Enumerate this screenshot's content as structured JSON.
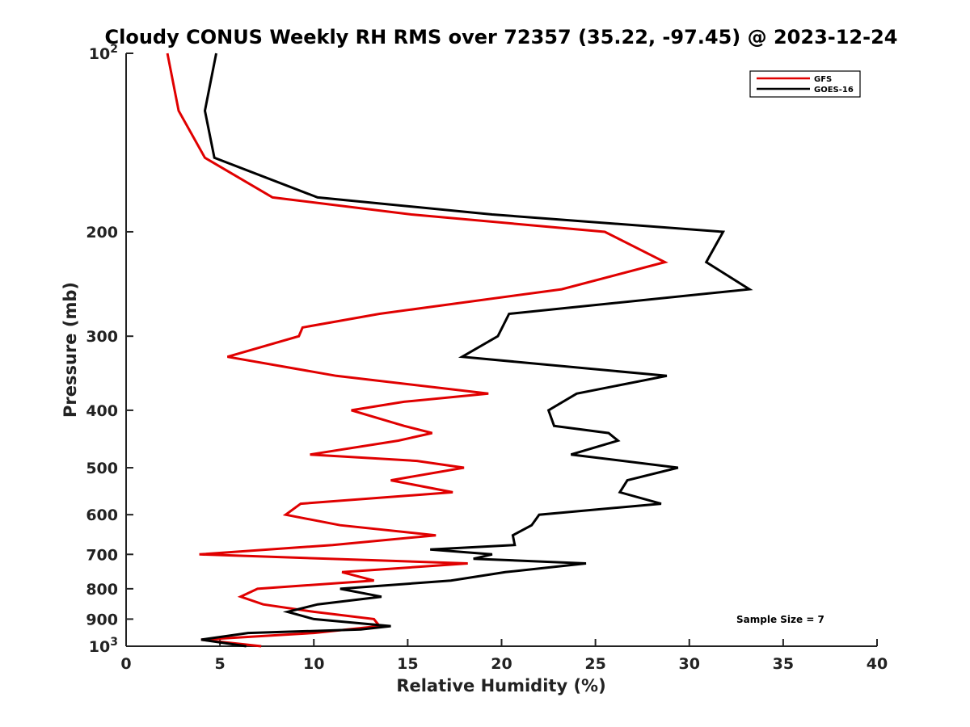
{
  "chart_data": {
    "type": "line",
    "title": "Cloudy CONUS Weekly RH RMS over 72357 (35.22, -97.45) @ 2023-12-24",
    "xlabel": "Relative Humidity (%)",
    "ylabel": "Pressure (mb)",
    "xlim": [
      0,
      40
    ],
    "ylim": [
      1000,
      100
    ],
    "y_scale": "log",
    "y_reversed": true,
    "grid": false,
    "legend_position": "top-right",
    "x_ticks": [
      0,
      5,
      10,
      15,
      20,
      25,
      30,
      35,
      40
    ],
    "y_ticks": [
      {
        "value": 100,
        "base": "10",
        "exp": "2"
      },
      {
        "value": 200,
        "label": "200"
      },
      {
        "value": 300,
        "label": "300"
      },
      {
        "value": 400,
        "label": "400"
      },
      {
        "value": 500,
        "label": "500"
      },
      {
        "value": 600,
        "label": "600"
      },
      {
        "value": 700,
        "label": "700"
      },
      {
        "value": 800,
        "label": "800"
      },
      {
        "value": 900,
        "label": "900"
      },
      {
        "value": 1000,
        "base": "10",
        "exp": "3"
      }
    ],
    "series": [
      {
        "name": "GFS",
        "color": "#e00000",
        "points": [
          [
            2.2,
            100
          ],
          [
            2.8,
            125
          ],
          [
            4.2,
            150
          ],
          [
            7.8,
            175
          ],
          [
            15.2,
            187
          ],
          [
            25.5,
            200
          ],
          [
            28.7,
            225
          ],
          [
            23.2,
            250
          ],
          [
            13.5,
            275
          ],
          [
            9.4,
            290
          ],
          [
            9.2,
            300
          ],
          [
            5.4,
            325
          ],
          [
            11.2,
            350
          ],
          [
            19.3,
            375
          ],
          [
            14.8,
            387
          ],
          [
            12.0,
            400
          ],
          [
            14.8,
            425
          ],
          [
            16.3,
            437
          ],
          [
            14.5,
            450
          ],
          [
            9.8,
            475
          ],
          [
            15.5,
            487
          ],
          [
            18.0,
            500
          ],
          [
            14.1,
            525
          ],
          [
            17.4,
            550
          ],
          [
            9.3,
            575
          ],
          [
            8.5,
            600
          ],
          [
            11.4,
            625
          ],
          [
            16.5,
            650
          ],
          [
            11.0,
            675
          ],
          [
            3.9,
            700
          ],
          [
            18.2,
            725
          ],
          [
            11.5,
            750
          ],
          [
            13.2,
            775
          ],
          [
            7.0,
            800
          ],
          [
            6.1,
            825
          ],
          [
            7.3,
            850
          ],
          [
            10.0,
            875
          ],
          [
            13.2,
            900
          ],
          [
            13.5,
            925
          ],
          [
            10.0,
            950
          ],
          [
            4.0,
            975
          ],
          [
            7.2,
            1000
          ]
        ]
      },
      {
        "name": "GOES-16",
        "color": "#000000",
        "points": [
          [
            4.8,
            100
          ],
          [
            4.2,
            125
          ],
          [
            4.7,
            150
          ],
          [
            10.2,
            175
          ],
          [
            19.5,
            187
          ],
          [
            31.8,
            200
          ],
          [
            30.9,
            225
          ],
          [
            33.2,
            250
          ],
          [
            20.4,
            275
          ],
          [
            19.8,
            300
          ],
          [
            17.9,
            325
          ],
          [
            28.8,
            350
          ],
          [
            24.0,
            375
          ],
          [
            22.5,
            400
          ],
          [
            22.8,
            425
          ],
          [
            25.7,
            437
          ],
          [
            26.2,
            450
          ],
          [
            23.7,
            475
          ],
          [
            29.4,
            500
          ],
          [
            26.7,
            525
          ],
          [
            26.3,
            550
          ],
          [
            28.5,
            575
          ],
          [
            22.0,
            600
          ],
          [
            21.6,
            625
          ],
          [
            20.6,
            650
          ],
          [
            20.7,
            675
          ],
          [
            16.2,
            687
          ],
          [
            19.5,
            700
          ],
          [
            18.5,
            712
          ],
          [
            24.5,
            725
          ],
          [
            20.2,
            750
          ],
          [
            17.3,
            775
          ],
          [
            11.4,
            800
          ],
          [
            13.6,
            825
          ],
          [
            10.2,
            850
          ],
          [
            8.6,
            875
          ],
          [
            10.0,
            900
          ],
          [
            14.1,
            925
          ],
          [
            12.5,
            937
          ],
          [
            6.5,
            950
          ],
          [
            4.0,
            975
          ],
          [
            6.4,
            1000
          ]
        ]
      }
    ],
    "annotation": "Sample Size = 7"
  }
}
